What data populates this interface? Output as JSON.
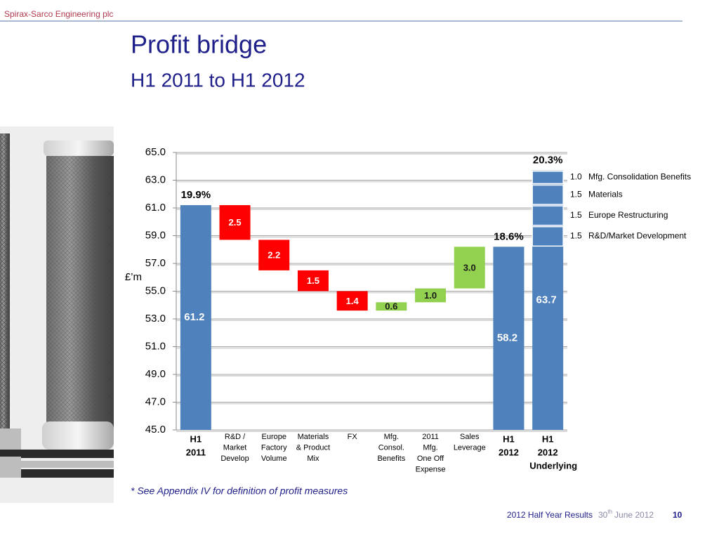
{
  "header": {
    "company": "Spirax-Sarco Engineering plc"
  },
  "title": "Profit bridge",
  "subtitle": "H1 2011 to H1 2012",
  "chart_data": {
    "type": "waterfall",
    "y_label": "£’m",
    "categories": [
      [
        "H1",
        "2011"
      ],
      [
        "R&D /",
        "Market",
        "Develop"
      ],
      [
        "Europe",
        "Factory",
        "Volume"
      ],
      [
        "Materials",
        "& Product",
        "Mix"
      ],
      [
        "FX"
      ],
      [
        "Mfg.",
        "Consol.",
        "Benefits"
      ],
      [
        "2011",
        "Mfg.",
        "One Off",
        "Expense"
      ],
      [
        "Sales",
        "Leverage"
      ],
      [
        "H1",
        "2012"
      ],
      [
        "H1",
        "2012",
        "Underlying"
      ]
    ],
    "values": [
      61.2,
      -2.5,
      -2.2,
      -1.5,
      -1.4,
      0.6,
      1.0,
      3.0,
      58.2,
      63.7
    ],
    "value_labels": [
      "61.2",
      "2.5",
      "2.2",
      "1.5",
      "1.4",
      "0.6",
      "1.0",
      "3.0",
      "58.2",
      "63.7"
    ],
    "is_total": [
      true,
      false,
      false,
      false,
      false,
      false,
      false,
      false,
      true,
      true
    ],
    "margin_labels": [
      "19.9%",
      null,
      null,
      null,
      null,
      null,
      null,
      null,
      "18.6%",
      "20.3%"
    ],
    "colors": {
      "total": "#4f81bd",
      "increase": "#92d050",
      "decrease": "#ff0000"
    },
    "underlying_breakdown": {
      "values": [
        1.5,
        1.5,
        1.5,
        1.0
      ],
      "value_labels": [
        "1.5",
        "1.5",
        "1.5",
        "1.0"
      ],
      "labels": [
        "R&D/Market Development",
        "Europe Restructuring",
        "Materials",
        "Mfg. Consolidation Benefits"
      ]
    },
    "ylim": [
      45,
      65
    ],
    "yticks": [
      {
        "value": 45,
        "label": "45.0"
      },
      {
        "value": 47,
        "label": "47.0"
      },
      {
        "value": 49,
        "label": "49.0"
      },
      {
        "value": 51,
        "label": "51.0"
      },
      {
        "value": 53,
        "label": "53.0"
      },
      {
        "value": 55,
        "label": "55.0"
      },
      {
        "value": 57,
        "label": "57.0"
      },
      {
        "value": 59,
        "label": "59.0"
      },
      {
        "value": 61,
        "label": "61.0"
      },
      {
        "value": 63,
        "label": "63.0"
      },
      {
        "value": 65,
        "label": "65.0"
      }
    ],
    "grid": true
  },
  "footnote": "* See Appendix IV for definition of profit measures",
  "footer": {
    "event": "2012 Half Year Results",
    "date_day": "30",
    "date_suffix": "th",
    "date_rest": "June 2012",
    "page": "10"
  }
}
